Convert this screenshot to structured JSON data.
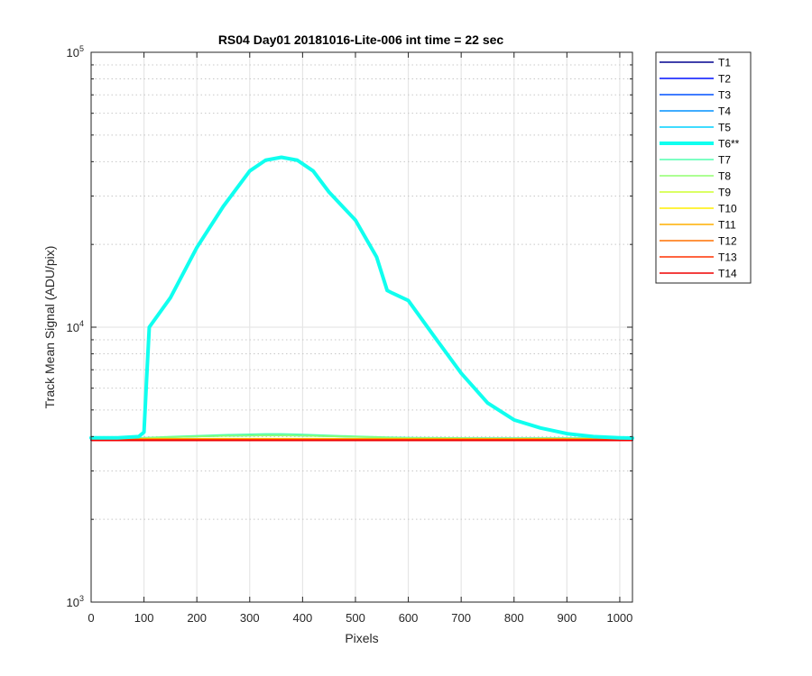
{
  "chart_data": {
    "type": "line",
    "title": "RS04 Day01 20181016-Lite-006 int time = 22 sec",
    "xlabel": "Pixels",
    "ylabel": "Track Mean Signal (ADU/pix)",
    "xlim": [
      0,
      1024
    ],
    "ylim": [
      1000,
      100000
    ],
    "yscale": "log",
    "grid": true,
    "legend_location": "outside-right",
    "x_ticks": [
      0,
      100,
      200,
      300,
      400,
      500,
      600,
      700,
      800,
      900,
      1000
    ],
    "x_tick_labels": [
      "0",
      "100",
      "200",
      "300",
      "400",
      "500",
      "600",
      "700",
      "800",
      "900",
      "1000"
    ],
    "y_ticks": [
      1000,
      10000,
      100000
    ],
    "y_tick_labels": [
      {
        "base": "10",
        "exp": "3"
      },
      {
        "base": "10",
        "exp": "4"
      },
      {
        "base": "10",
        "exp": "5"
      }
    ],
    "x": [
      0,
      50,
      90,
      100,
      105,
      110,
      150,
      200,
      250,
      300,
      330,
      360,
      390,
      420,
      450,
      500,
      540,
      560,
      570,
      600,
      650,
      700,
      750,
      800,
      850,
      900,
      950,
      1000,
      1024
    ],
    "series": [
      {
        "name": "T1",
        "color": "#00008f",
        "bold": false,
        "y": [
          3880,
          3880,
          3880,
          3880,
          3880,
          3880,
          3880,
          3880,
          3880,
          3880,
          3880,
          3880,
          3880,
          3880,
          3880,
          3880,
          3880,
          3880,
          3880,
          3880,
          3880,
          3880,
          3880,
          3880,
          3880,
          3880,
          3880,
          3880,
          3880
        ]
      },
      {
        "name": "T2",
        "color": "#0010ff",
        "bold": false,
        "y": [
          3885,
          3885,
          3885,
          3885,
          3885,
          3885,
          3885,
          3885,
          3885,
          3885,
          3885,
          3885,
          3885,
          3885,
          3885,
          3885,
          3885,
          3885,
          3885,
          3885,
          3885,
          3885,
          3885,
          3885,
          3885,
          3885,
          3885,
          3885,
          3885
        ]
      },
      {
        "name": "T3",
        "color": "#0050ff",
        "bold": false,
        "y": [
          3890,
          3890,
          3890,
          3890,
          3890,
          3890,
          3890,
          3890,
          3890,
          3890,
          3890,
          3890,
          3890,
          3890,
          3890,
          3890,
          3890,
          3890,
          3890,
          3890,
          3890,
          3890,
          3890,
          3890,
          3890,
          3890,
          3890,
          3890,
          3890
        ]
      },
      {
        "name": "T4",
        "color": "#0090ff",
        "bold": false,
        "y": [
          3900,
          3900,
          3900,
          3900,
          3900,
          3900,
          3900,
          3900,
          3900,
          3900,
          3900,
          3900,
          3900,
          3900,
          3900,
          3900,
          3900,
          3900,
          3900,
          3900,
          3900,
          3900,
          3900,
          3900,
          3900,
          3900,
          3900,
          3900,
          3900
        ]
      },
      {
        "name": "T5",
        "color": "#00d0ff",
        "bold": false,
        "y": [
          3950,
          3950,
          3960,
          3960,
          3960,
          3960,
          3980,
          4000,
          4020,
          4030,
          4040,
          4040,
          4030,
          4020,
          4010,
          3990,
          3980,
          3970,
          3970,
          3960,
          3950,
          3950,
          3950,
          3950,
          3950,
          3950,
          3950,
          3950,
          3950
        ]
      },
      {
        "name": "T6**",
        "color": "#10ffef",
        "bold": true,
        "y": [
          3960,
          3960,
          4000,
          4150,
          6500,
          10000,
          12800,
          19500,
          27500,
          37000,
          40500,
          41500,
          40500,
          37000,
          31000,
          24500,
          18000,
          13600,
          13300,
          12500,
          9200,
          6800,
          5300,
          4600,
          4300,
          4100,
          4000,
          3960,
          3950
        ]
      },
      {
        "name": "T7",
        "color": "#50ffaf",
        "bold": false,
        "y": [
          3950,
          3950,
          3955,
          3960,
          3965,
          3970,
          4000,
          4030,
          4060,
          4080,
          4090,
          4090,
          4080,
          4060,
          4040,
          4010,
          3990,
          3980,
          3975,
          3965,
          3960,
          3955,
          3950,
          3950,
          3950,
          3950,
          3950,
          3950,
          3950
        ]
      },
      {
        "name": "T8",
        "color": "#90ff6f",
        "bold": false,
        "y": [
          3940,
          3940,
          3945,
          3950,
          3955,
          3960,
          3980,
          4000,
          4020,
          4030,
          4035,
          4035,
          4030,
          4020,
          4010,
          3990,
          3975,
          3965,
          3960,
          3955,
          3950,
          3945,
          3940,
          3940,
          3940,
          3940,
          3940,
          3940,
          3940
        ]
      },
      {
        "name": "T9",
        "color": "#cfff30",
        "bold": false,
        "y": [
          3930,
          3930,
          3930,
          3930,
          3930,
          3930,
          3930,
          3930,
          3930,
          3930,
          3930,
          3930,
          3930,
          3930,
          3930,
          3930,
          3930,
          3930,
          3930,
          3930,
          3930,
          3930,
          3930,
          3930,
          3930,
          3930,
          3930,
          3930,
          3930
        ]
      },
      {
        "name": "T10",
        "color": "#ffef00",
        "bold": false,
        "y": [
          3925,
          3925,
          3925,
          3925,
          3925,
          3925,
          3925,
          3925,
          3925,
          3925,
          3925,
          3925,
          3925,
          3925,
          3925,
          3925,
          3925,
          3925,
          3925,
          3925,
          3925,
          3925,
          3925,
          3925,
          3925,
          3925,
          3925,
          3925,
          3925
        ]
      },
      {
        "name": "T11",
        "color": "#ffaf00",
        "bold": false,
        "y": [
          3920,
          3920,
          3920,
          3920,
          3920,
          3920,
          3920,
          3920,
          3920,
          3920,
          3920,
          3920,
          3920,
          3920,
          3920,
          3920,
          3920,
          3920,
          3920,
          3920,
          3920,
          3920,
          3920,
          3920,
          3920,
          3920,
          3920,
          3920,
          3920
        ]
      },
      {
        "name": "T12",
        "color": "#ff7000",
        "bold": false,
        "y": [
          3910,
          3910,
          3910,
          3910,
          3910,
          3910,
          3910,
          3910,
          3910,
          3910,
          3910,
          3910,
          3910,
          3910,
          3910,
          3910,
          3910,
          3910,
          3910,
          3910,
          3910,
          3910,
          3910,
          3910,
          3910,
          3910,
          3910,
          3910,
          3910
        ]
      },
      {
        "name": "T13",
        "color": "#ff3000",
        "bold": false,
        "y": [
          3895,
          3895,
          3895,
          3895,
          3895,
          3895,
          3895,
          3895,
          3895,
          3895,
          3895,
          3895,
          3895,
          3895,
          3895,
          3895,
          3895,
          3895,
          3895,
          3895,
          3895,
          3895,
          3895,
          3895,
          3895,
          3895,
          3895,
          3895,
          3895
        ]
      },
      {
        "name": "T14",
        "color": "#ef0000",
        "bold": false,
        "y": [
          3870,
          3870,
          3870,
          3870,
          3870,
          3870,
          3870,
          3870,
          3870,
          3870,
          3870,
          3870,
          3870,
          3870,
          3870,
          3870,
          3870,
          3870,
          3870,
          3870,
          3870,
          3870,
          3870,
          3870,
          3870,
          3870,
          3870,
          3870,
          3870
        ]
      }
    ]
  }
}
